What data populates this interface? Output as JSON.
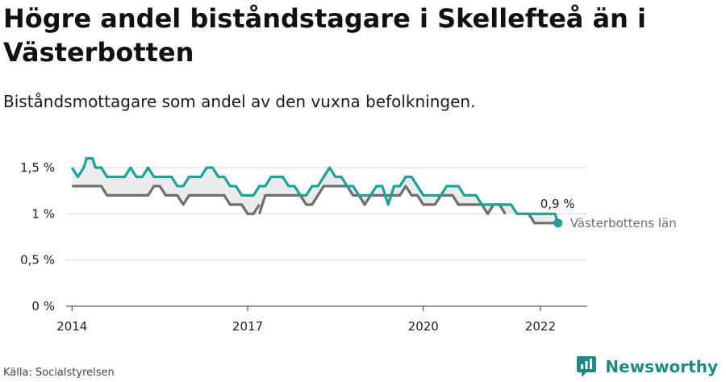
{
  "header": {
    "title": "Högre andel biståndstagare i Skellefteå än i Västerbotten",
    "subtitle": "Biståndsmottagare som andel av den vuxna befolkningen."
  },
  "footer": {
    "source": "Källa: Socialstyrelsen",
    "brand": "Newsworthy"
  },
  "colors": {
    "skelleftea": "#1aa39a",
    "vasterbotten": "#6e6e6e",
    "band": "#ebebeb",
    "grid": "#d8d8d8"
  },
  "chart_data": {
    "type": "line",
    "title": "Högre andel biståndstagare i Skellefteå än i Västerbotten",
    "subtitle": "Biståndsmottagare som andel av den vuxna befolkningen.",
    "xlabel": "",
    "ylabel": "",
    "ylim": [
      0,
      1.6
    ],
    "xlim": [
      2013.9,
      2022.8
    ],
    "y_ticks": [
      {
        "value": 0,
        "label": "0 %"
      },
      {
        "value": 0.5,
        "label": "0,5 %"
      },
      {
        "value": 1,
        "label": "1 %"
      },
      {
        "value": 1.5,
        "label": "1,5 %"
      }
    ],
    "x_ticks": [
      {
        "value": 2014,
        "label": "2014"
      },
      {
        "value": 2017,
        "label": "2017"
      },
      {
        "value": 2020,
        "label": "2020"
      },
      {
        "value": 2022,
        "label": "2022"
      }
    ],
    "grid": true,
    "end_label": "0,9 %",
    "series": [
      {
        "name": "Skellefteå",
        "color": "#1aa39a",
        "points": [
          [
            2014.0,
            1.5
          ],
          [
            2014.1,
            1.4
          ],
          [
            2014.2,
            1.5
          ],
          [
            2014.25,
            1.6
          ],
          [
            2014.35,
            1.6
          ],
          [
            2014.4,
            1.5
          ],
          [
            2014.5,
            1.5
          ],
          [
            2014.6,
            1.4
          ],
          [
            2014.9,
            1.4
          ],
          [
            2015.0,
            1.5
          ],
          [
            2015.1,
            1.4
          ],
          [
            2015.2,
            1.4
          ],
          [
            2015.3,
            1.5
          ],
          [
            2015.4,
            1.4
          ],
          [
            2015.7,
            1.4
          ],
          [
            2015.8,
            1.3
          ],
          [
            2015.9,
            1.3
          ],
          [
            2016.0,
            1.4
          ],
          [
            2016.2,
            1.4
          ],
          [
            2016.3,
            1.5
          ],
          [
            2016.4,
            1.5
          ],
          [
            2016.5,
            1.4
          ],
          [
            2016.6,
            1.4
          ],
          [
            2016.7,
            1.3
          ],
          [
            2016.8,
            1.3
          ],
          [
            2016.9,
            1.2
          ],
          [
            2017.1,
            1.2
          ],
          [
            2017.2,
            1.3
          ],
          [
            2017.3,
            1.3
          ],
          [
            2017.4,
            1.4
          ],
          [
            2017.6,
            1.4
          ],
          [
            2017.7,
            1.3
          ],
          [
            2017.8,
            1.3
          ],
          [
            2017.9,
            1.2
          ],
          [
            2018.0,
            1.2
          ],
          [
            2018.1,
            1.3
          ],
          [
            2018.2,
            1.3
          ],
          [
            2018.3,
            1.4
          ],
          [
            2018.4,
            1.5
          ],
          [
            2018.5,
            1.4
          ],
          [
            2018.6,
            1.4
          ],
          [
            2018.7,
            1.3
          ],
          [
            2018.8,
            1.3
          ],
          [
            2018.9,
            1.2
          ],
          [
            2019.1,
            1.2
          ],
          [
            2019.2,
            1.3
          ],
          [
            2019.3,
            1.3
          ],
          [
            2019.4,
            1.1
          ],
          [
            2019.5,
            1.3
          ],
          [
            2019.6,
            1.3
          ],
          [
            2019.7,
            1.4
          ],
          [
            2019.8,
            1.4
          ],
          [
            2019.9,
            1.3
          ],
          [
            2020.0,
            1.2
          ],
          [
            2020.3,
            1.2
          ],
          [
            2020.4,
            1.3
          ],
          [
            2020.6,
            1.3
          ],
          [
            2020.7,
            1.2
          ],
          [
            2020.9,
            1.2
          ],
          [
            2021.0,
            1.1
          ],
          [
            2021.5,
            1.1
          ],
          [
            2021.6,
            1.0
          ],
          [
            2021.7,
            1.0
          ],
          [
            2022.1,
            1.0
          ],
          [
            2022.25,
            1.0
          ],
          [
            2022.3,
            0.9
          ]
        ]
      },
      {
        "name": "Västerbottens län",
        "color": "#6e6e6e",
        "segments": [
          [
            [
              2014.0,
              1.3
            ],
            [
              2014.5,
              1.3
            ],
            [
              2014.6,
              1.2
            ],
            [
              2015.3,
              1.2
            ],
            [
              2015.4,
              1.3
            ],
            [
              2015.5,
              1.3
            ],
            [
              2015.6,
              1.2
            ],
            [
              2015.8,
              1.2
            ],
            [
              2015.9,
              1.1
            ],
            [
              2016.0,
              1.2
            ],
            [
              2016.6,
              1.2
            ],
            [
              2016.7,
              1.1
            ],
            [
              2016.9,
              1.1
            ],
            [
              2017.0,
              1.0
            ],
            [
              2017.1,
              1.0
            ],
            [
              2017.2,
              1.1
            ]
          ],
          [
            [
              2017.2,
              1.0
            ],
            [
              2017.3,
              1.2
            ],
            [
              2017.9,
              1.2
            ],
            [
              2018.0,
              1.1
            ],
            [
              2018.1,
              1.1
            ],
            [
              2018.2,
              1.2
            ],
            [
              2018.3,
              1.3
            ],
            [
              2018.7,
              1.3
            ],
            [
              2018.8,
              1.2
            ],
            [
              2018.9,
              1.2
            ],
            [
              2019.0,
              1.1
            ],
            [
              2019.1,
              1.2
            ],
            [
              2019.6,
              1.2
            ],
            [
              2019.7,
              1.3
            ],
            [
              2019.8,
              1.2
            ],
            [
              2019.9,
              1.2
            ],
            [
              2020.0,
              1.1
            ],
            [
              2020.2,
              1.1
            ],
            [
              2020.3,
              1.2
            ],
            [
              2020.5,
              1.2
            ],
            [
              2020.6,
              1.1
            ],
            [
              2021.0,
              1.1
            ],
            [
              2021.1,
              1.0
            ],
            [
              2021.2,
              1.1
            ],
            [
              2021.3,
              1.1
            ],
            [
              2021.4,
              1.0
            ]
          ],
          [
            [
              2021.6,
              1.0
            ],
            [
              2021.8,
              1.0
            ],
            [
              2021.9,
              0.9
            ],
            [
              2022.3,
              0.9
            ]
          ]
        ]
      }
    ]
  }
}
